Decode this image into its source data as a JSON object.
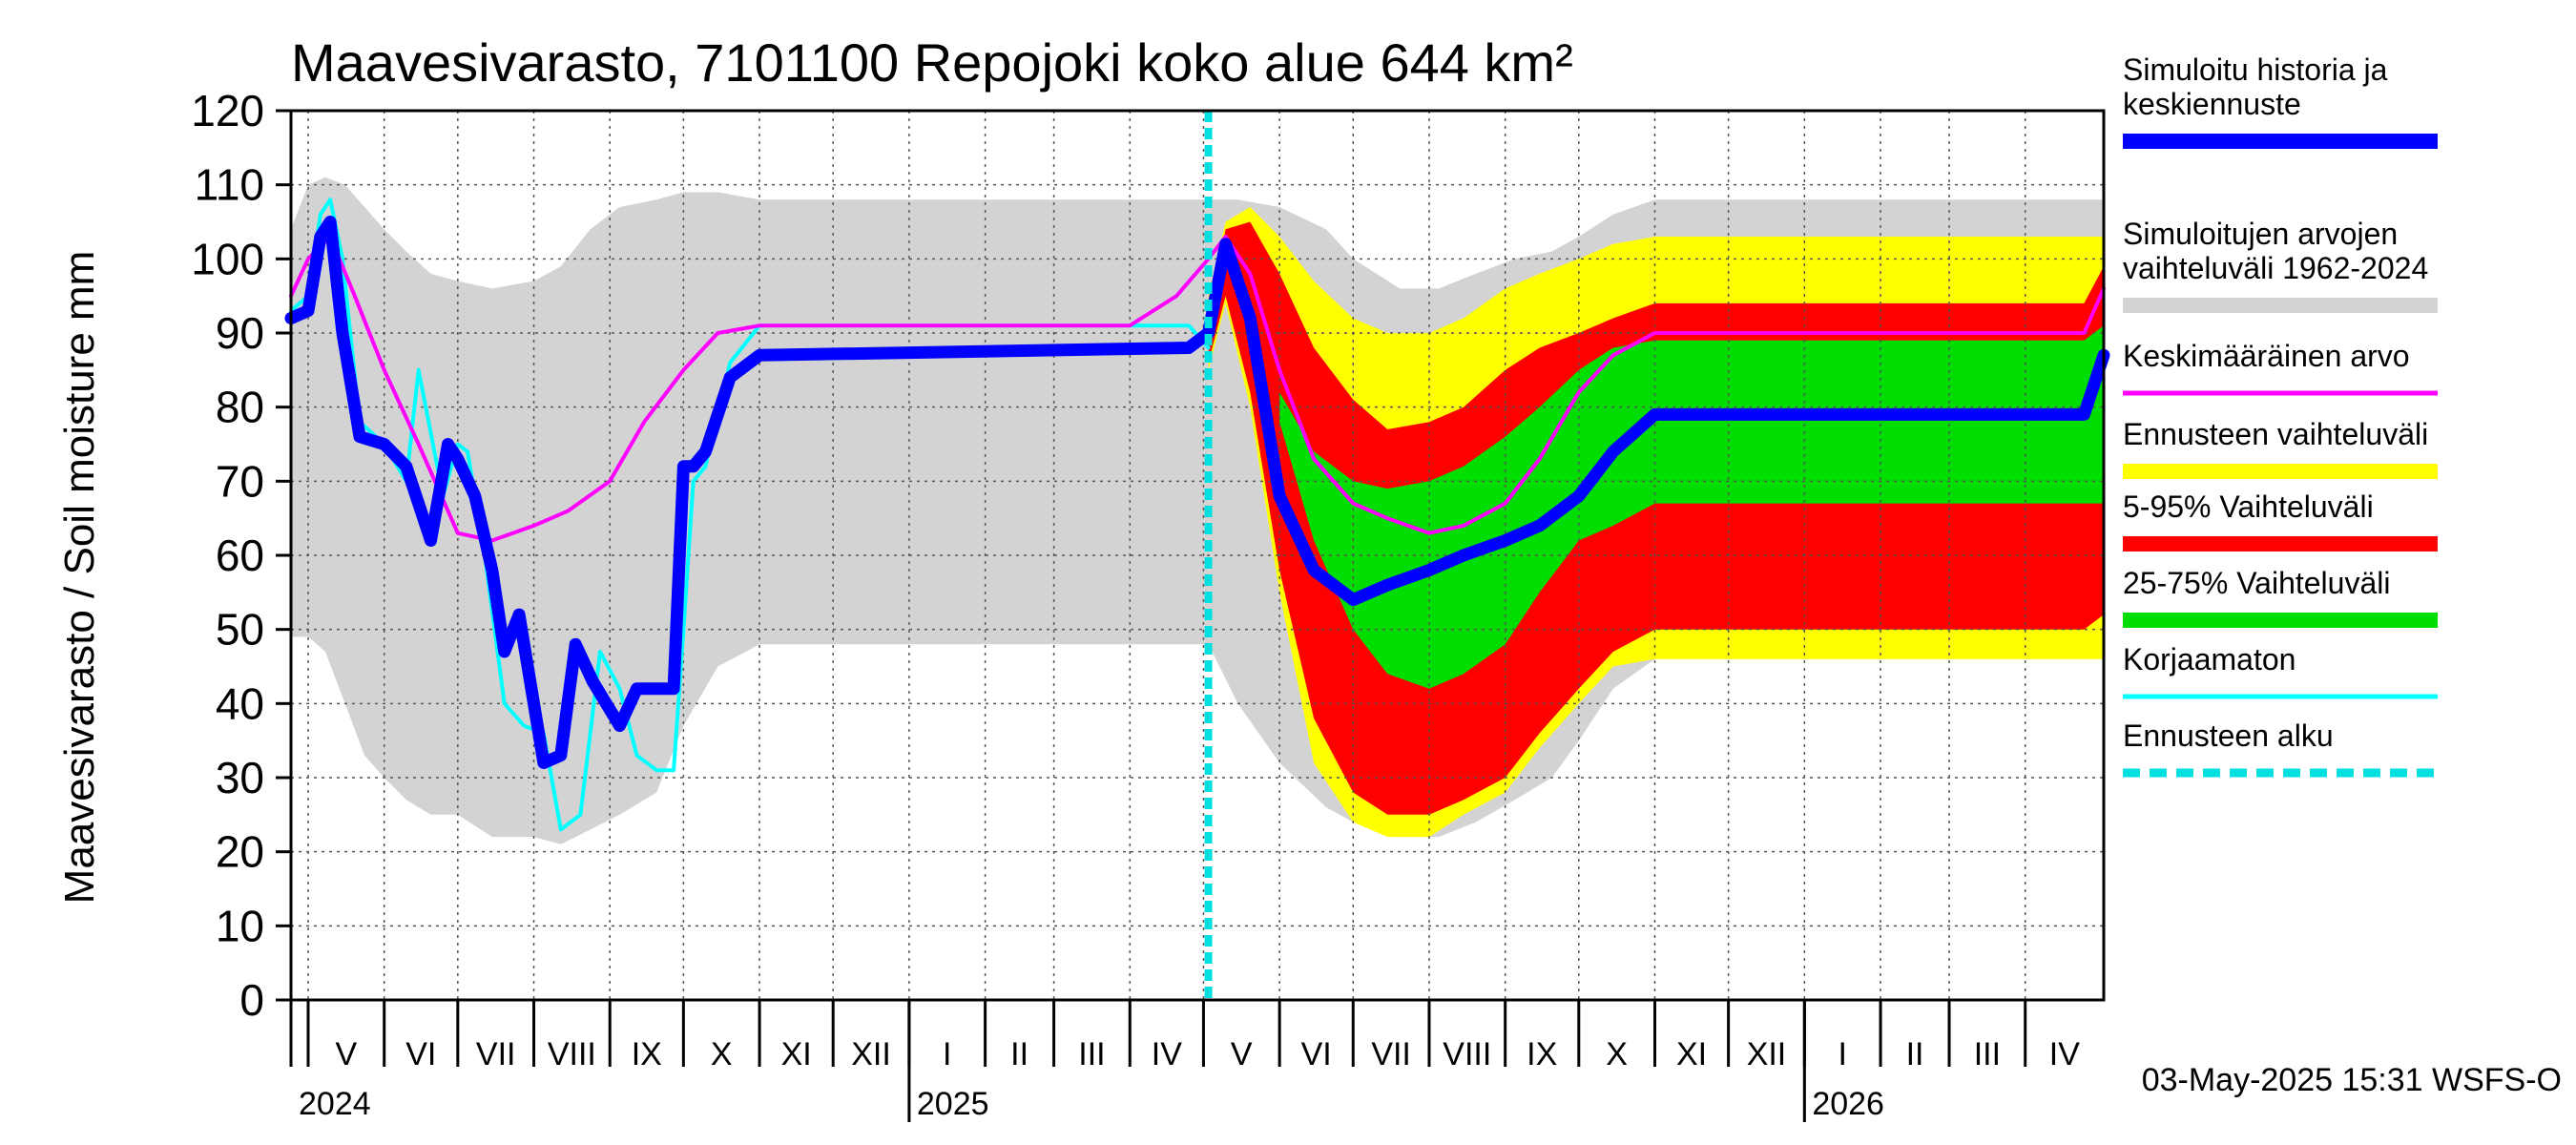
{
  "chart_data": {
    "type": "area",
    "title": "Maavesivarasto, 7101100 Repojoki koko alue 644 km²",
    "ylabel": "Maavesivarasto / Soil moisture   mm",
    "ylim": [
      0,
      120
    ],
    "yticks": [
      0,
      10,
      20,
      30,
      40,
      50,
      60,
      70,
      80,
      90,
      100,
      110,
      120
    ],
    "xlim": [
      "2024-04-24",
      "2026-05-03"
    ],
    "grid": true,
    "legend_position": "right",
    "months": [
      {
        "label": "V",
        "start": "2024-05-01"
      },
      {
        "label": "VI",
        "start": "2024-06-01"
      },
      {
        "label": "VII",
        "start": "2024-07-01"
      },
      {
        "label": "VIII",
        "start": "2024-08-01"
      },
      {
        "label": "IX",
        "start": "2024-09-01"
      },
      {
        "label": "X",
        "start": "2024-10-01"
      },
      {
        "label": "XI",
        "start": "2024-11-01"
      },
      {
        "label": "XII",
        "start": "2024-12-01"
      },
      {
        "label": "I",
        "start": "2025-01-01"
      },
      {
        "label": "II",
        "start": "2025-02-01"
      },
      {
        "label": "III",
        "start": "2025-03-01"
      },
      {
        "label": "IV",
        "start": "2025-04-01"
      },
      {
        "label": "V",
        "start": "2025-05-01"
      },
      {
        "label": "VI",
        "start": "2025-06-01"
      },
      {
        "label": "VII",
        "start": "2025-07-01"
      },
      {
        "label": "VIII",
        "start": "2025-08-01"
      },
      {
        "label": "IX",
        "start": "2025-09-01"
      },
      {
        "label": "X",
        "start": "2025-10-01"
      },
      {
        "label": "XI",
        "start": "2025-11-01"
      },
      {
        "label": "XII",
        "start": "2025-12-01"
      },
      {
        "label": "I",
        "start": "2026-01-01"
      },
      {
        "label": "II",
        "start": "2026-02-01"
      },
      {
        "label": "III",
        "start": "2026-03-01"
      },
      {
        "label": "IV",
        "start": "2026-04-01"
      }
    ],
    "years": [
      {
        "label": "2024",
        "date": "2024-04-24"
      },
      {
        "label": "2025",
        "date": "2025-01-01"
      },
      {
        "label": "2026",
        "date": "2026-01-01"
      }
    ],
    "forecast_start": "2025-05-03",
    "timestamp": "03-May-2025 15:31 WSFS-O",
    "legend": [
      {
        "label": "Simuloitu historia ja keskiennuste",
        "color": "#0000ff",
        "style": "thick"
      },
      {
        "label": "Simuloitujen arvojen vaihteluväli 1962-2024",
        "color": "#d3d3d3",
        "style": "band"
      },
      {
        "label": "Keskimääräinen arvo",
        "color": "#ff00ff",
        "style": "thin"
      },
      {
        "label": "Ennusteen vaihteluväli",
        "color": "#ffff00",
        "style": "band"
      },
      {
        "label": "5-95% Vaihteluväli",
        "color": "#ff0000",
        "style": "band"
      },
      {
        "label": "25-75% Vaihteluväli",
        "color": "#00dd00",
        "style": "band"
      },
      {
        "label": "Korjaamaton",
        "color": "#00ffff",
        "style": "thin"
      },
      {
        "label": "Ennusteen alku",
        "color": "#00e0e0",
        "style": "dashed"
      }
    ],
    "series": [
      {
        "name": "Simuloitujen arvojen vaihteluväli 1962-2024",
        "kind": "band",
        "color": "#d3d3d3",
        "x": [
          "2024-04-24",
          "2024-05-01",
          "2024-05-08",
          "2024-05-16",
          "2024-05-24",
          "2024-06-01",
          "2024-06-10",
          "2024-06-20",
          "2024-07-01",
          "2024-07-15",
          "2024-08-01",
          "2024-08-12",
          "2024-08-24",
          "2024-09-05",
          "2024-09-20",
          "2024-10-01",
          "2024-10-15",
          "2024-11-01",
          "2025-04-01",
          "2025-04-25",
          "2025-05-03",
          "2025-05-15",
          "2025-06-01",
          "2025-06-20",
          "2025-07-01",
          "2025-07-20",
          "2025-08-05",
          "2025-08-20",
          "2025-09-05",
          "2025-09-20",
          "2025-10-01",
          "2025-10-15",
          "2025-11-01",
          "2026-04-01",
          "2026-05-03"
        ],
        "low": [
          49,
          49,
          47,
          40,
          33,
          30,
          27,
          25,
          25,
          22,
          22,
          21,
          23,
          25,
          28,
          37,
          45,
          48,
          48,
          48,
          48,
          40,
          32,
          26,
          24,
          22,
          22,
          24,
          27,
          30,
          35,
          42,
          46,
          46,
          46
        ],
        "high": [
          104,
          110,
          111,
          110,
          107,
          104,
          101,
          98,
          97,
          96,
          97,
          99,
          104,
          107,
          108,
          109,
          109,
          108,
          108,
          108,
          108,
          108,
          107,
          104,
          100,
          96,
          96,
          98,
          100,
          101,
          103,
          106,
          108,
          108,
          108
        ]
      },
      {
        "name": "Ennusteen vaihteluväli",
        "kind": "band",
        "color": "#ffff00",
        "x": [
          "2025-05-03",
          "2025-05-10",
          "2025-05-20",
          "2025-06-01",
          "2025-06-15",
          "2025-07-01",
          "2025-07-15",
          "2025-08-01",
          "2025-08-15",
          "2025-09-01",
          "2025-09-15",
          "2025-10-01",
          "2025-10-15",
          "2025-11-01",
          "2026-04-25",
          "2026-05-03"
        ],
        "low": [
          85,
          94,
          80,
          55,
          32,
          24,
          22,
          22,
          25,
          28,
          34,
          40,
          45,
          46,
          46,
          46
        ],
        "high": [
          95,
          105,
          107,
          103,
          97,
          92,
          90,
          90,
          92,
          96,
          98,
          100,
          102,
          103,
          103,
          103
        ]
      },
      {
        "name": "5-95% Vaihteluväli",
        "kind": "band",
        "color": "#ff0000",
        "x": [
          "2025-05-03",
          "2025-05-10",
          "2025-05-20",
          "2025-06-01",
          "2025-06-15",
          "2025-07-01",
          "2025-07-15",
          "2025-08-01",
          "2025-08-15",
          "2025-09-01",
          "2025-09-15",
          "2025-10-01",
          "2025-10-15",
          "2025-11-01",
          "2026-04-25",
          "2026-05-03"
        ],
        "low": [
          86,
          95,
          82,
          58,
          38,
          28,
          25,
          25,
          27,
          30,
          36,
          42,
          47,
          50,
          50,
          52
        ],
        "high": [
          92,
          104,
          105,
          98,
          88,
          81,
          77,
          78,
          80,
          85,
          88,
          90,
          92,
          94,
          94,
          99
        ]
      },
      {
        "name": "25-75% Vaihteluväli",
        "kind": "band",
        "color": "#00dd00",
        "x": [
          "2025-06-01",
          "2025-06-15",
          "2025-07-01",
          "2025-07-15",
          "2025-08-01",
          "2025-08-15",
          "2025-09-01",
          "2025-09-15",
          "2025-10-01",
          "2025-10-15",
          "2025-11-01",
          "2026-04-25",
          "2026-05-03"
        ],
        "low": [
          78,
          62,
          50,
          44,
          42,
          44,
          48,
          55,
          62,
          64,
          67,
          67,
          67
        ],
        "high": [
          82,
          74,
          70,
          69,
          70,
          72,
          76,
          80,
          85,
          88,
          89,
          89,
          91
        ]
      },
      {
        "name": "Korjaamaton",
        "kind": "line",
        "color": "#00ffff",
        "x": [
          "2024-04-24",
          "2024-05-01",
          "2024-05-06",
          "2024-05-10",
          "2024-05-15",
          "2024-05-22",
          "2024-06-01",
          "2024-06-10",
          "2024-06-15",
          "2024-06-25",
          "2024-07-01",
          "2024-07-05",
          "2024-07-12",
          "2024-07-20",
          "2024-07-28",
          "2024-08-05",
          "2024-08-12",
          "2024-08-20",
          "2024-08-28",
          "2024-09-05",
          "2024-09-12",
          "2024-09-20",
          "2024-09-27",
          "2024-10-01",
          "2024-10-05",
          "2024-10-10",
          "2024-10-20",
          "2024-11-01",
          "2025-04-25",
          "2025-05-03"
        ],
        "y": [
          93,
          95,
          106,
          108,
          100,
          78,
          75,
          70,
          85,
          68,
          75,
          74,
          60,
          40,
          37,
          36,
          23,
          25,
          47,
          42,
          33,
          31,
          31,
          50,
          70,
          72,
          86,
          91,
          91,
          88
        ]
      },
      {
        "name": "Keskimääräinen arvo",
        "kind": "line",
        "color": "#ff00ff",
        "x": [
          "2024-04-24",
          "2024-05-01",
          "2024-05-10",
          "2024-05-20",
          "2024-06-01",
          "2024-06-15",
          "2024-07-01",
          "2024-07-15",
          "2024-08-01",
          "2024-08-15",
          "2024-09-01",
          "2024-09-15",
          "2024-10-01",
          "2024-10-15",
          "2024-11-01",
          "2025-04-01",
          "2025-04-20",
          "2025-05-03",
          "2025-05-10",
          "2025-05-20",
          "2025-06-01",
          "2025-06-15",
          "2025-07-01",
          "2025-07-15",
          "2025-08-01",
          "2025-08-15",
          "2025-09-01",
          "2025-09-15",
          "2025-10-01",
          "2025-10-15",
          "2025-11-01",
          "2026-04-25",
          "2026-05-03"
        ],
        "y": [
          95,
          100,
          103,
          95,
          85,
          75,
          63,
          62,
          64,
          66,
          70,
          78,
          85,
          90,
          91,
          91,
          95,
          100,
          103,
          98,
          85,
          73,
          67,
          65,
          63,
          64,
          67,
          73,
          82,
          87,
          90,
          90,
          96
        ]
      },
      {
        "name": "Simuloitu historia ja keskiennuste",
        "kind": "line-thick",
        "color": "#0000ff",
        "x": [
          "2024-04-24",
          "2024-05-01",
          "2024-05-06",
          "2024-05-10",
          "2024-05-15",
          "2024-05-22",
          "2024-06-01",
          "2024-06-10",
          "2024-06-20",
          "2024-06-27",
          "2024-07-01",
          "2024-07-08",
          "2024-07-15",
          "2024-07-20",
          "2024-07-26",
          "2024-08-05",
          "2024-08-12",
          "2024-08-18",
          "2024-08-25",
          "2024-09-05",
          "2024-09-12",
          "2024-09-19",
          "2024-09-27",
          "2024-10-01",
          "2024-10-05",
          "2024-10-10",
          "2024-10-20",
          "2024-11-01",
          "2025-04-25",
          "2025-05-03",
          "2025-05-10",
          "2025-05-20",
          "2025-06-01",
          "2025-06-15",
          "2025-07-01",
          "2025-07-15",
          "2025-08-01",
          "2025-08-15",
          "2025-09-01",
          "2025-09-15",
          "2025-10-01",
          "2025-10-15",
          "2025-11-01",
          "2026-04-25",
          "2026-05-03"
        ],
        "y": [
          92,
          93,
          103,
          105,
          90,
          76,
          75,
          72,
          62,
          75,
          73,
          68,
          58,
          47,
          52,
          32,
          33,
          48,
          43,
          37,
          42,
          42,
          42,
          72,
          72,
          74,
          84,
          87,
          88,
          90,
          102,
          92,
          68,
          58,
          54,
          56,
          58,
          60,
          62,
          64,
          68,
          74,
          79,
          79,
          87
        ]
      }
    ]
  }
}
